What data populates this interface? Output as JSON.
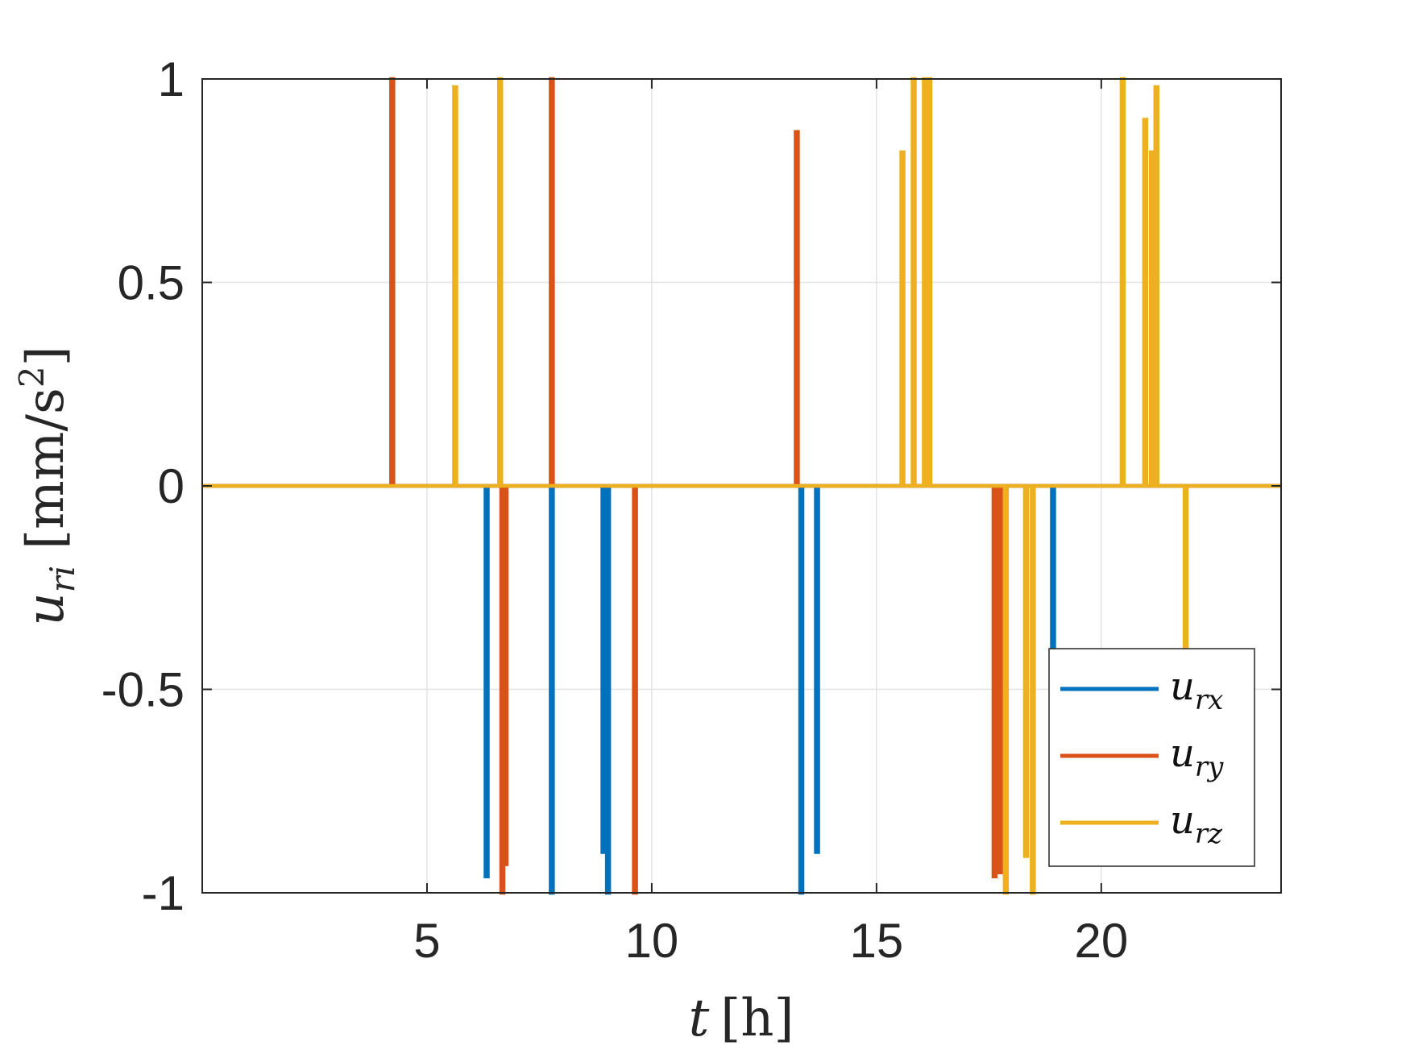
{
  "chart_data": {
    "type": "line",
    "xlabel": "t [h]",
    "ylabel": "u_ri [mm/s^2]",
    "xlim": [
      0,
      24
    ],
    "ylim": [
      -1,
      1
    ],
    "xticks": [
      5,
      10,
      15,
      20
    ],
    "yticks": [
      -1,
      -0.5,
      0,
      0.5,
      1
    ],
    "xtick_labels": [
      "5",
      "10",
      "15",
      "20"
    ],
    "ytick_labels": [
      "-1",
      "-0.5",
      "0",
      "0.5",
      "1"
    ],
    "grid": true,
    "legend_position": "bottom-right",
    "series": [
      {
        "name": "u_rx",
        "color": "#0072BD",
        "pulses": [
          {
            "t": 6.3,
            "u": -0.96
          },
          {
            "t": 7.75,
            "u": -1.0
          },
          {
            "t": 8.9,
            "u": -0.9
          },
          {
            "t": 9.0,
            "u": -1.0
          },
          {
            "t": 13.3,
            "u": -1.0
          },
          {
            "t": 13.65,
            "u": -0.9
          },
          {
            "t": 18.9,
            "u": -0.4
          }
        ]
      },
      {
        "name": "u_ry",
        "color": "#D95319",
        "pulses": [
          {
            "t": 4.2,
            "u": 1.0
          },
          {
            "t": 6.65,
            "u": -1.0
          },
          {
            "t": 6.72,
            "u": -0.93
          },
          {
            "t": 7.75,
            "u": 1.0
          },
          {
            "t": 9.6,
            "u": -1.0
          },
          {
            "t": 13.2,
            "u": 0.87
          },
          {
            "t": 17.6,
            "u": -0.96
          },
          {
            "t": 17.68,
            "u": -0.95
          },
          {
            "t": 17.75,
            "u": -0.95
          }
        ]
      },
      {
        "name": "u_rz",
        "color": "#EDB120",
        "pulses": [
          {
            "t": 5.6,
            "u": 0.98
          },
          {
            "t": 6.6,
            "u": 1.0
          },
          {
            "t": 15.55,
            "u": 0.82
          },
          {
            "t": 15.8,
            "u": 1.0
          },
          {
            "t": 16.05,
            "u": 1.0
          },
          {
            "t": 16.15,
            "u": 1.0
          },
          {
            "t": 17.85,
            "u": -1.0
          },
          {
            "t": 18.3,
            "u": -0.91
          },
          {
            "t": 18.45,
            "u": -1.0
          },
          {
            "t": 20.45,
            "u": 1.0
          },
          {
            "t": 20.95,
            "u": 0.9
          },
          {
            "t": 21.1,
            "u": 0.82
          },
          {
            "t": 21.2,
            "u": 0.98
          },
          {
            "t": 21.85,
            "u": -0.4
          }
        ]
      }
    ]
  }
}
